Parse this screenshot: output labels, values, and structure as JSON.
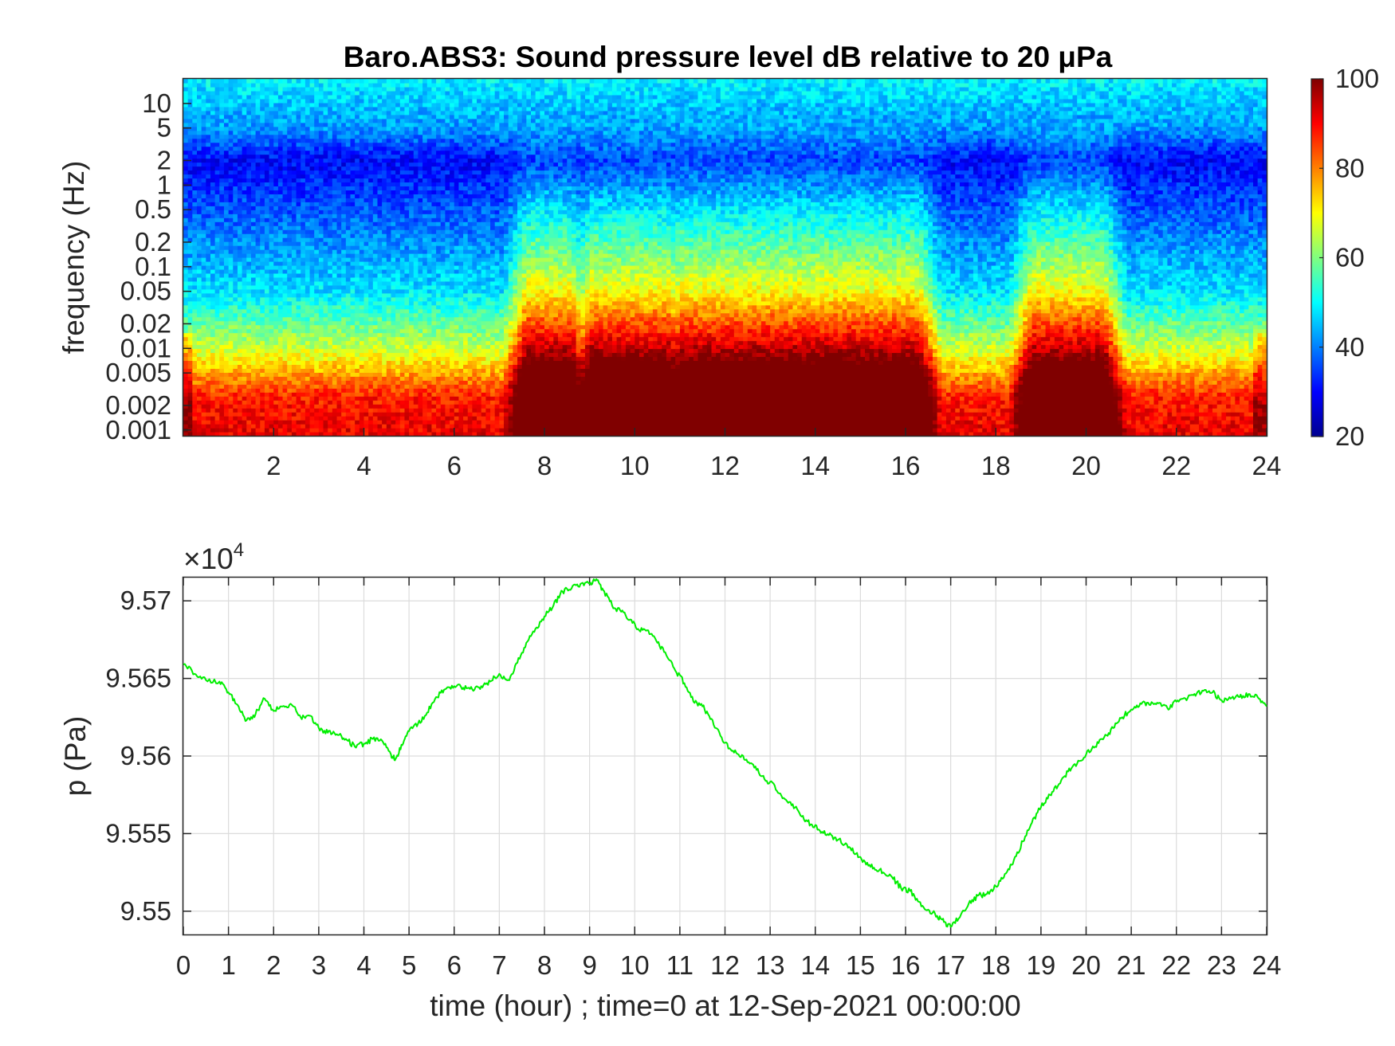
{
  "chart_data": [
    {
      "type": "heatmap",
      "title": "Baro.ABS3: Sound pressure level dB relative to 20 μPa",
      "ylabel": "frequency (Hz)",
      "xlabel": "",
      "x_ticks": [
        2,
        4,
        6,
        8,
        10,
        12,
        14,
        16,
        18,
        20,
        22,
        24
      ],
      "x_tick_labels": [
        "2",
        "4",
        "6",
        "8",
        "10",
        "12",
        "14",
        "16",
        "18",
        "20",
        "22",
        "24"
      ],
      "xlim": [
        0,
        24
      ],
      "y_scale": "log",
      "ylim": [
        0.00085,
        20
      ],
      "y_ticks": [
        0.001,
        0.002,
        0.005,
        0.01,
        0.02,
        0.05,
        0.1,
        0.2,
        0.5,
        1,
        2,
        5,
        10
      ],
      "y_tick_labels": [
        "0.001",
        "0.002",
        "0.005",
        "0.01",
        "0.02",
        "0.05",
        "0.1",
        "0.2",
        "0.5",
        "1",
        "2",
        "5",
        "10"
      ],
      "colormap": "jet",
      "clim": [
        20,
        100
      ],
      "colorbar_ticks": [
        20,
        40,
        60,
        80,
        100
      ],
      "colorbar_tick_labels": [
        "20",
        "40",
        "60",
        "80",
        "100"
      ],
      "activity_periods_hours": [
        [
          7.6,
          8.6
        ],
        [
          9.0,
          10.8
        ],
        [
          11.0,
          16.3
        ],
        [
          18.8,
          20.4
        ]
      ]
    },
    {
      "type": "line",
      "title": "",
      "xlabel": "time (hour) ; time=0 at 12-Sep-2021 00:00:00",
      "ylabel": "p (Pa)",
      "exponent_label": "×10",
      "exponent_power": "4",
      "xlim": [
        0,
        24
      ],
      "ylim": [
        9.5485,
        9.5715
      ],
      "x_ticks": [
        0,
        1,
        2,
        3,
        4,
        5,
        6,
        7,
        8,
        9,
        10,
        11,
        12,
        13,
        14,
        15,
        16,
        17,
        18,
        19,
        20,
        21,
        22,
        23,
        24
      ],
      "x_tick_labels": [
        "0",
        "1",
        "2",
        "3",
        "4",
        "5",
        "6",
        "7",
        "8",
        "9",
        "10",
        "11",
        "12",
        "13",
        "14",
        "15",
        "16",
        "17",
        "18",
        "19",
        "20",
        "21",
        "22",
        "23",
        "24"
      ],
      "y_ticks": [
        9.55,
        9.555,
        9.56,
        9.565,
        9.57
      ],
      "y_tick_labels": [
        "9.55",
        "9.555",
        "9.56",
        "9.565",
        "9.57"
      ],
      "grid": true,
      "line_color": "#00ee00",
      "series": [
        {
          "x": [
            0,
            0.25,
            0.5,
            0.8,
            1.0,
            1.2,
            1.4,
            1.6,
            1.8,
            2.0,
            2.2,
            2.4,
            2.6,
            2.8,
            3.0,
            3.2,
            3.4,
            3.6,
            3.8,
            4.0,
            4.2,
            4.4,
            4.6,
            4.7,
            4.85,
            5.0,
            5.2,
            5.4,
            5.6,
            5.8,
            6.0,
            6.2,
            6.4,
            6.6,
            6.8,
            7.0,
            7.2,
            7.4,
            7.6,
            7.8,
            8.0,
            8.2,
            8.4,
            8.6,
            8.8,
            9.0,
            9.15,
            9.3,
            9.5,
            9.7,
            9.9,
            10.1,
            10.3,
            10.5,
            10.7,
            10.9,
            11.1,
            11.3,
            11.5,
            11.7,
            11.9,
            12.1,
            12.3,
            12.5,
            12.7,
            12.9,
            13.1,
            13.3,
            13.5,
            13.7,
            13.9,
            14.1,
            14.3,
            14.5,
            14.7,
            14.9,
            15.1,
            15.3,
            15.5,
            15.7,
            15.9,
            16.1,
            16.3,
            16.5,
            16.7,
            16.85,
            17.0,
            17.2,
            17.4,
            17.6,
            17.8,
            18.0,
            18.2,
            18.4,
            18.6,
            18.8,
            19.0,
            19.2,
            19.4,
            19.6,
            19.8,
            20.0,
            20.2,
            20.4,
            20.6,
            20.8,
            21.0,
            21.2,
            21.4,
            21.6,
            21.8,
            22.0,
            22.2,
            22.4,
            22.6,
            22.8,
            23.0,
            23.2,
            23.4,
            23.6,
            23.8,
            24.0
          ],
          "y": [
            9.5659,
            9.5653,
            9.5649,
            9.5648,
            9.5641,
            9.5633,
            9.5623,
            9.5627,
            9.5637,
            9.5629,
            9.5632,
            9.5633,
            9.5625,
            9.5626,
            9.5618,
            9.5615,
            9.5614,
            9.5611,
            9.5606,
            9.5608,
            9.5611,
            9.561,
            9.5601,
            9.5598,
            9.5607,
            9.5616,
            9.5621,
            9.5628,
            9.5638,
            9.5643,
            9.5645,
            9.5644,
            9.5643,
            9.5645,
            9.5648,
            9.5653,
            9.5649,
            9.566,
            9.5673,
            9.5682,
            9.569,
            9.5697,
            9.5706,
            9.5708,
            9.5711,
            9.5711,
            9.5714,
            9.5707,
            9.5697,
            9.5693,
            9.5688,
            9.5681,
            9.5681,
            9.5673,
            9.5665,
            9.5655,
            9.5647,
            9.5635,
            9.5632,
            9.5624,
            9.5613,
            9.5605,
            9.5601,
            9.5596,
            9.5591,
            9.5584,
            9.5581,
            9.5573,
            9.5569,
            9.5561,
            9.5556,
            9.5552,
            9.5549,
            9.5546,
            9.5543,
            9.5537,
            9.5532,
            9.5528,
            9.5525,
            9.5522,
            9.5515,
            9.5513,
            9.5506,
            9.5501,
            9.5497,
            9.5493,
            9.549,
            9.5496,
            9.5505,
            9.551,
            9.5511,
            9.5516,
            9.5524,
            9.5533,
            9.5545,
            9.5557,
            9.5567,
            9.5575,
            9.5582,
            9.559,
            9.5595,
            9.5601,
            9.5606,
            9.5612,
            9.5618,
            9.5625,
            9.563,
            9.5634,
            9.5633,
            9.5634,
            9.5631,
            9.5635,
            9.5637,
            9.564,
            9.5642,
            9.5641,
            9.5636,
            9.5637,
            9.5638,
            9.564,
            9.5638,
            9.5632
          ]
        }
      ]
    }
  ]
}
